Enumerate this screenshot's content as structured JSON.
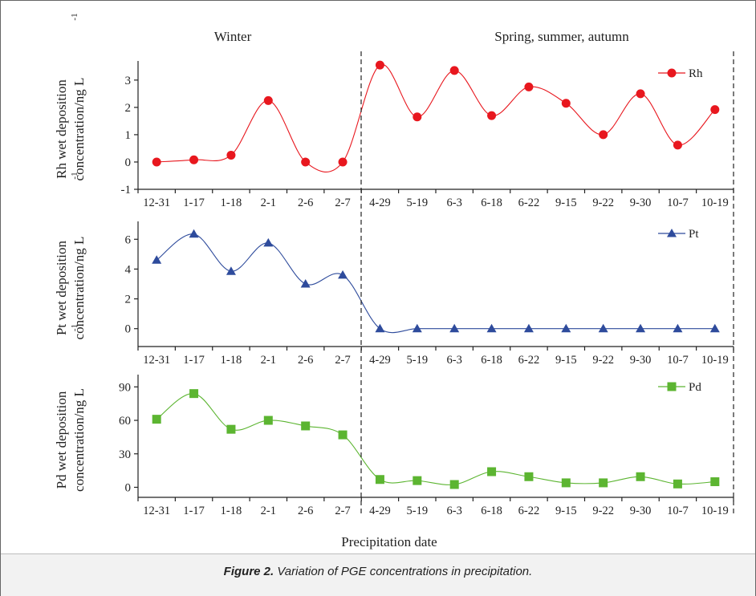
{
  "caption": {
    "label": "Figure 2.",
    "text": "Variation of PGE concentrations in precipitation."
  },
  "period_labels": [
    "Winter",
    "Spring, summer, autumn"
  ],
  "chart_data": [
    {
      "type": "line",
      "categories": [
        "12-31",
        "1-17",
        "1-18",
        "2-1",
        "2-6",
        "2-7",
        "4-29",
        "5-19",
        "6-3",
        "6-18",
        "6-22",
        "9-15",
        "9-22",
        "9-30",
        "10-7",
        "10-19"
      ],
      "series": [
        {
          "name": "Rh",
          "values": [
            0,
            0.08,
            0.25,
            2.25,
            0,
            0,
            3.55,
            1.65,
            3.35,
            1.7,
            2.75,
            2.15,
            1.0,
            2.5,
            0.62,
            1.92
          ],
          "color": "#e8171e",
          "marker": "circle"
        }
      ],
      "ylabel": "Rh wet deposition concentration/ng L",
      "ylabel_sup": "-1",
      "ylim": [
        -1,
        3.7
      ],
      "yticks": [
        -1,
        0,
        1,
        2,
        3
      ],
      "legend": "top-right",
      "grid": false
    },
    {
      "type": "line",
      "categories": [
        "12-31",
        "1-17",
        "1-18",
        "2-1",
        "2-6",
        "2-7",
        "4-29",
        "5-19",
        "6-3",
        "6-18",
        "6-22",
        "9-15",
        "9-22",
        "9-30",
        "10-7",
        "10-19"
      ],
      "series": [
        {
          "name": "Pt",
          "values": [
            4.6,
            6.35,
            3.85,
            5.75,
            3.0,
            3.6,
            0,
            0,
            0,
            0,
            0,
            0,
            0,
            0,
            0,
            0
          ],
          "color": "#2e4b9c",
          "marker": "triangle"
        }
      ],
      "ylabel": "Pt wet deposition concentration/ng L",
      "ylabel_sup": "-1",
      "ylim": [
        -1.2,
        7.2
      ],
      "yticks": [
        0,
        2,
        4,
        6
      ],
      "legend": "top-right",
      "grid": false
    },
    {
      "type": "line",
      "categories": [
        "12-31",
        "1-17",
        "1-18",
        "2-1",
        "2-6",
        "2-7",
        "4-29",
        "5-19",
        "6-3",
        "6-18",
        "6-22",
        "9-15",
        "9-22",
        "9-30",
        "10-7",
        "10-19"
      ],
      "series": [
        {
          "name": "Pd",
          "values": [
            61,
            84,
            52,
            60,
            55,
            47,
            7,
            6,
            2.5,
            14,
            9.5,
            4,
            4,
            9.5,
            3,
            5
          ],
          "color": "#5cb531",
          "marker": "square"
        }
      ],
      "ylabel": "Pd wet deposition concentration/ng L",
      "ylabel_sup": "-1",
      "ylim": [
        -9,
        101
      ],
      "yticks": [
        0,
        30,
        60,
        90
      ],
      "legend": "top-right",
      "grid": false
    }
  ],
  "xlabel": "Precipitation date"
}
